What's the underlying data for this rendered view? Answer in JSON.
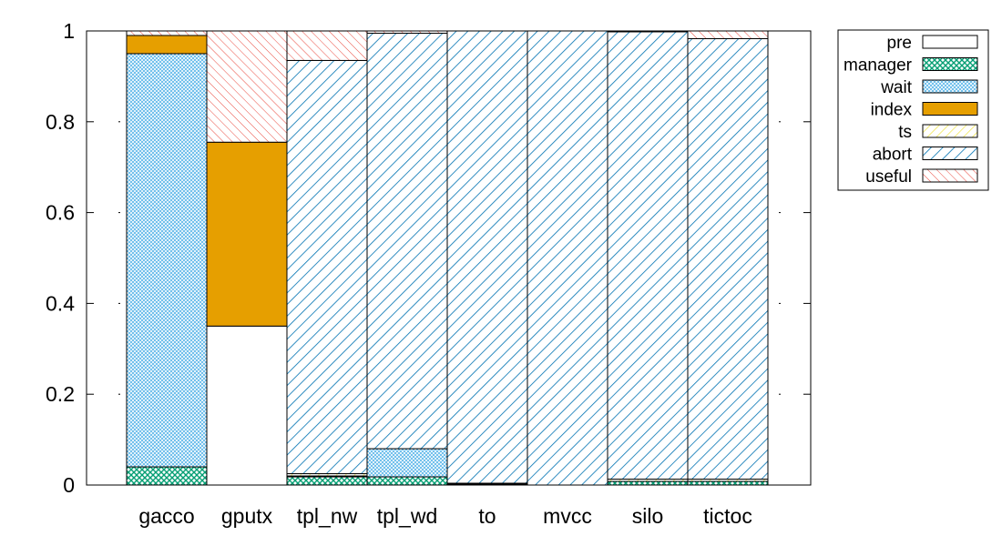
{
  "chart_data": {
    "type": "bar",
    "stacked": true,
    "categories": [
      "gacco",
      "gputx",
      "tpl_nw",
      "tpl_wd",
      "to",
      "mvcc",
      "silo",
      "tictoc"
    ],
    "ylim": [
      0,
      1
    ],
    "yticks": [
      "0",
      "0.2",
      "0.4",
      "0.6",
      "0.8",
      "1"
    ],
    "legend_position": "top-right, outside plot",
    "series": [
      {
        "name": "pre",
        "pattern": "solid",
        "color": "#ffffff",
        "values": [
          0.0,
          0.35,
          0.0,
          0.0,
          0.0,
          0.0,
          0.0,
          0.0
        ]
      },
      {
        "name": "manager",
        "pattern": "crosshatch",
        "color": "#009e73",
        "values": [
          0.04,
          0.0,
          0.018,
          0.018,
          0.002,
          0.0,
          0.008,
          0.008
        ]
      },
      {
        "name": "wait",
        "pattern": "fine-hatch",
        "color": "#56b4e9",
        "values": [
          0.91,
          0.0,
          0.002,
          0.062,
          0.0,
          0.0,
          0.0,
          0.0
        ]
      },
      {
        "name": "index",
        "pattern": "solid",
        "color": "#e69f00",
        "values": [
          0.04,
          0.405,
          0.0,
          0.0,
          0.0,
          0.0,
          0.0,
          0.0
        ]
      },
      {
        "name": "ts",
        "pattern": "hatch",
        "color": "#f0e442",
        "values": [
          0.0,
          0.0,
          0.005,
          0.0,
          0.002,
          0.0,
          0.005,
          0.005
        ]
      },
      {
        "name": "abort",
        "pattern": "diagonal",
        "color": "#0072b2",
        "values": [
          0.0,
          0.0,
          0.91,
          0.915,
          0.996,
          1.0,
          0.985,
          0.97
        ]
      },
      {
        "name": "useful",
        "pattern": "hatch",
        "color": "#e51e10",
        "values": [
          0.01,
          0.245,
          0.065,
          0.005,
          0.0,
          0.0,
          0.002,
          0.017
        ]
      }
    ]
  }
}
